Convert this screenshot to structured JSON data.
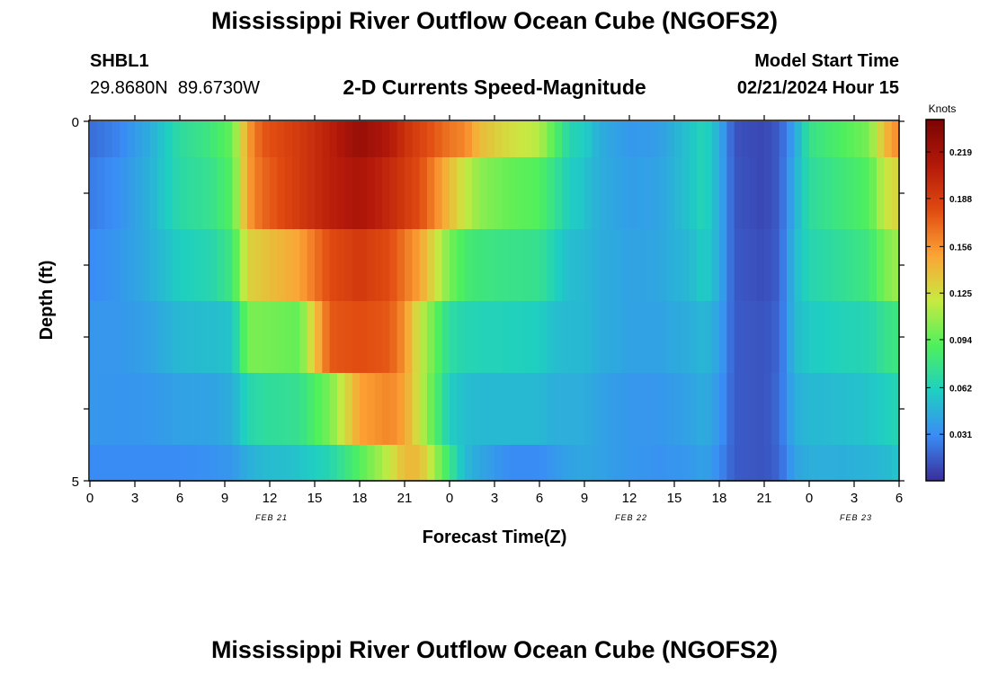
{
  "header": {
    "title": "Mississippi River Outflow Ocean Cube (NGOFS2)",
    "station_id": "SHBL1",
    "station_coords": "29.8680N  89.6730W",
    "subtitle": "2-D Currents Speed-Magnitude",
    "model_start_label": "Model Start Time",
    "model_start_value": "02/21/2024 Hour 15"
  },
  "footer": {
    "title": "Mississippi River Outflow Ocean Cube (NGOFS2)"
  },
  "colors": {
    "colormap": [
      "#3a2d9b",
      "#3a8cf5",
      "#1fcfc1",
      "#4ff05c",
      "#c9e941",
      "#fca335",
      "#e04a10",
      "#b3180a",
      "#7a0403"
    ]
  },
  "chart_data": {
    "type": "heatmap",
    "title": "2-D Currents Speed-Magnitude",
    "xlabel": "Forecast Time(Z)",
    "ylabel": "Depth (ft)",
    "xlim": [
      0,
      54
    ],
    "ylim": [
      0,
      5
    ],
    "x_tick_values": [
      0,
      3,
      6,
      9,
      12,
      15,
      18,
      21,
      24,
      27,
      30,
      33,
      36,
      39,
      42,
      45,
      48,
      51,
      54
    ],
    "x_tick_labels": [
      "0",
      "3",
      "6",
      "9",
      "12",
      "15",
      "18",
      "21",
      "0",
      "3",
      "6",
      "9",
      "12",
      "15",
      "18",
      "21",
      "0",
      "3",
      "6"
    ],
    "y_tick_labels": [
      "0",
      "5"
    ],
    "date_labels": [
      {
        "label": "FEB 21",
        "hour": 12
      },
      {
        "label": "FEB 22",
        "hour": 36
      },
      {
        "label": "FEB 23",
        "hour": 51
      }
    ],
    "colorbar": {
      "label": "Knots",
      "min": 0.0,
      "max": 0.24,
      "ticks": [
        0.031,
        0.062,
        0.094,
        0.125,
        0.156,
        0.188,
        0.219
      ]
    },
    "keyframe_hours": [
      0,
      2,
      4,
      6,
      8,
      9.5,
      10.5,
      11.5,
      14,
      16,
      18,
      20,
      21,
      22,
      24,
      25,
      26,
      28,
      30,
      31,
      32,
      33,
      34,
      36,
      38,
      40,
      41,
      42,
      43,
      45,
      46,
      47,
      48,
      49,
      50,
      52,
      53,
      54
    ],
    "depth_layers": [
      {
        "depth_range": [
          0,
          0.5
        ],
        "speed": [
          0.02,
          0.028,
          0.045,
          0.07,
          0.08,
          0.095,
          0.15,
          0.175,
          0.19,
          0.205,
          0.225,
          0.21,
          0.195,
          0.185,
          0.165,
          0.16,
          0.14,
          0.125,
          0.115,
          0.09,
          0.065,
          0.06,
          0.045,
          0.035,
          0.038,
          0.055,
          0.065,
          0.045,
          0.012,
          0.008,
          0.015,
          0.04,
          0.075,
          0.082,
          0.088,
          0.1,
          0.14,
          0.16
        ]
      },
      {
        "depth_range": [
          0.5,
          1.5
        ],
        "speed": [
          0.025,
          0.032,
          0.047,
          0.068,
          0.075,
          0.09,
          0.15,
          0.17,
          0.19,
          0.205,
          0.215,
          0.2,
          0.19,
          0.18,
          0.14,
          0.12,
          0.105,
          0.095,
          0.09,
          0.075,
          0.06,
          0.055,
          0.045,
          0.038,
          0.04,
          0.055,
          0.065,
          0.045,
          0.013,
          0.008,
          0.015,
          0.045,
          0.07,
          0.075,
          0.08,
          0.09,
          0.12,
          0.13
        ]
      },
      {
        "depth_range": [
          1.5,
          2.5
        ],
        "speed": [
          0.03,
          0.035,
          0.045,
          0.06,
          0.065,
          0.08,
          0.13,
          0.135,
          0.15,
          0.18,
          0.19,
          0.18,
          0.165,
          0.15,
          0.1,
          0.085,
          0.08,
          0.077,
          0.075,
          0.062,
          0.052,
          0.05,
          0.045,
          0.04,
          0.042,
          0.05,
          0.06,
          0.045,
          0.014,
          0.01,
          0.016,
          0.05,
          0.065,
          0.068,
          0.072,
          0.08,
          0.1,
          0.11
        ]
      },
      {
        "depth_range": [
          2.5,
          3.5
        ],
        "speed": [
          0.035,
          0.035,
          0.04,
          0.05,
          0.052,
          0.055,
          0.1,
          0.1,
          0.095,
          0.175,
          0.18,
          0.175,
          0.155,
          0.12,
          0.07,
          0.065,
          0.063,
          0.062,
          0.06,
          0.052,
          0.05,
          0.05,
          0.045,
          0.04,
          0.04,
          0.045,
          0.05,
          0.04,
          0.015,
          0.012,
          0.018,
          0.05,
          0.058,
          0.06,
          0.062,
          0.065,
          0.075,
          0.08
        ]
      },
      {
        "depth_range": [
          3.5,
          4.5
        ],
        "speed": [
          0.035,
          0.034,
          0.035,
          0.04,
          0.04,
          0.045,
          0.065,
          0.07,
          0.075,
          0.1,
          0.15,
          0.16,
          0.15,
          0.12,
          0.06,
          0.052,
          0.05,
          0.05,
          0.05,
          0.045,
          0.045,
          0.045,
          0.04,
          0.035,
          0.035,
          0.04,
          0.045,
          0.035,
          0.015,
          0.012,
          0.02,
          0.045,
          0.05,
          0.05,
          0.052,
          0.055,
          0.06,
          0.065
        ]
      },
      {
        "depth_range": [
          4.5,
          5
        ],
        "speed": [
          0.03,
          0.03,
          0.03,
          0.03,
          0.032,
          0.035,
          0.045,
          0.05,
          0.055,
          0.065,
          0.09,
          0.12,
          0.14,
          0.14,
          0.08,
          0.05,
          0.042,
          0.03,
          0.03,
          0.035,
          0.04,
          0.042,
          0.04,
          0.035,
          0.033,
          0.035,
          0.04,
          0.03,
          0.015,
          0.012,
          0.018,
          0.04,
          0.045,
          0.045,
          0.045,
          0.048,
          0.05,
          0.055
        ]
      }
    ]
  }
}
